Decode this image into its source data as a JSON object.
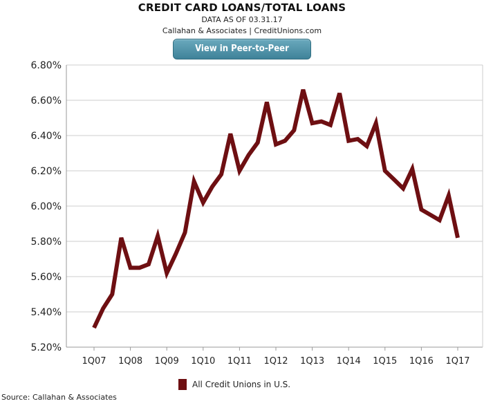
{
  "header": {
    "title": "CREDIT CARD LOANS/TOTAL LOANS",
    "subtitle": "DATA AS OF 03.31.17",
    "attribution": "Callahan & Associates | CreditUnions.com",
    "button_label": "View in Peer-to-Peer"
  },
  "footer": {
    "source": "Source: Callahan & Associates"
  },
  "colors": {
    "series": "#6e0f12",
    "button": "#4a8ea3",
    "grid": "#cccccc",
    "axis": "#999999"
  },
  "chart_data": {
    "type": "line",
    "title": "CREDIT CARD LOANS/TOTAL LOANS",
    "xlabel": "",
    "ylabel": "",
    "ylim": [
      5.2,
      6.8
    ],
    "yticks": [
      "5.20%",
      "5.40%",
      "5.60%",
      "5.80%",
      "6.00%",
      "6.20%",
      "6.40%",
      "6.60%",
      "6.80%"
    ],
    "ytick_values": [
      5.2,
      5.4,
      5.6,
      5.8,
      6.0,
      6.2,
      6.4,
      6.6,
      6.8
    ],
    "xticks": [
      "1Q07",
      "1Q08",
      "1Q09",
      "1Q10",
      "1Q11",
      "1Q12",
      "1Q13",
      "1Q14",
      "1Q15",
      "1Q16",
      "1Q17"
    ],
    "grid": "horizontal",
    "legend_position": "bottom",
    "x": [
      "1Q07",
      "2Q07",
      "3Q07",
      "4Q07",
      "1Q08",
      "2Q08",
      "3Q08",
      "4Q08",
      "1Q09",
      "2Q09",
      "3Q09",
      "4Q09",
      "1Q10",
      "2Q10",
      "3Q10",
      "4Q10",
      "1Q11",
      "2Q11",
      "3Q11",
      "4Q11",
      "1Q12",
      "2Q12",
      "3Q12",
      "4Q12",
      "1Q13",
      "2Q13",
      "3Q13",
      "4Q13",
      "1Q14",
      "2Q14",
      "3Q14",
      "4Q14",
      "1Q15",
      "2Q15",
      "3Q15",
      "4Q15",
      "1Q16",
      "2Q16",
      "3Q16",
      "4Q16",
      "1Q17"
    ],
    "series": [
      {
        "name": "All Credit Unions in U.S.",
        "values": [
          5.31,
          5.42,
          5.5,
          5.82,
          5.65,
          5.65,
          5.67,
          5.83,
          5.62,
          5.73,
          5.85,
          6.14,
          6.02,
          6.11,
          6.18,
          6.41,
          6.2,
          6.29,
          6.36,
          6.59,
          6.35,
          6.37,
          6.43,
          6.66,
          6.47,
          6.48,
          6.46,
          6.64,
          6.37,
          6.38,
          6.34,
          6.47,
          6.2,
          6.15,
          6.1,
          6.21,
          5.98,
          5.95,
          5.92,
          6.06,
          5.82
        ]
      }
    ]
  }
}
